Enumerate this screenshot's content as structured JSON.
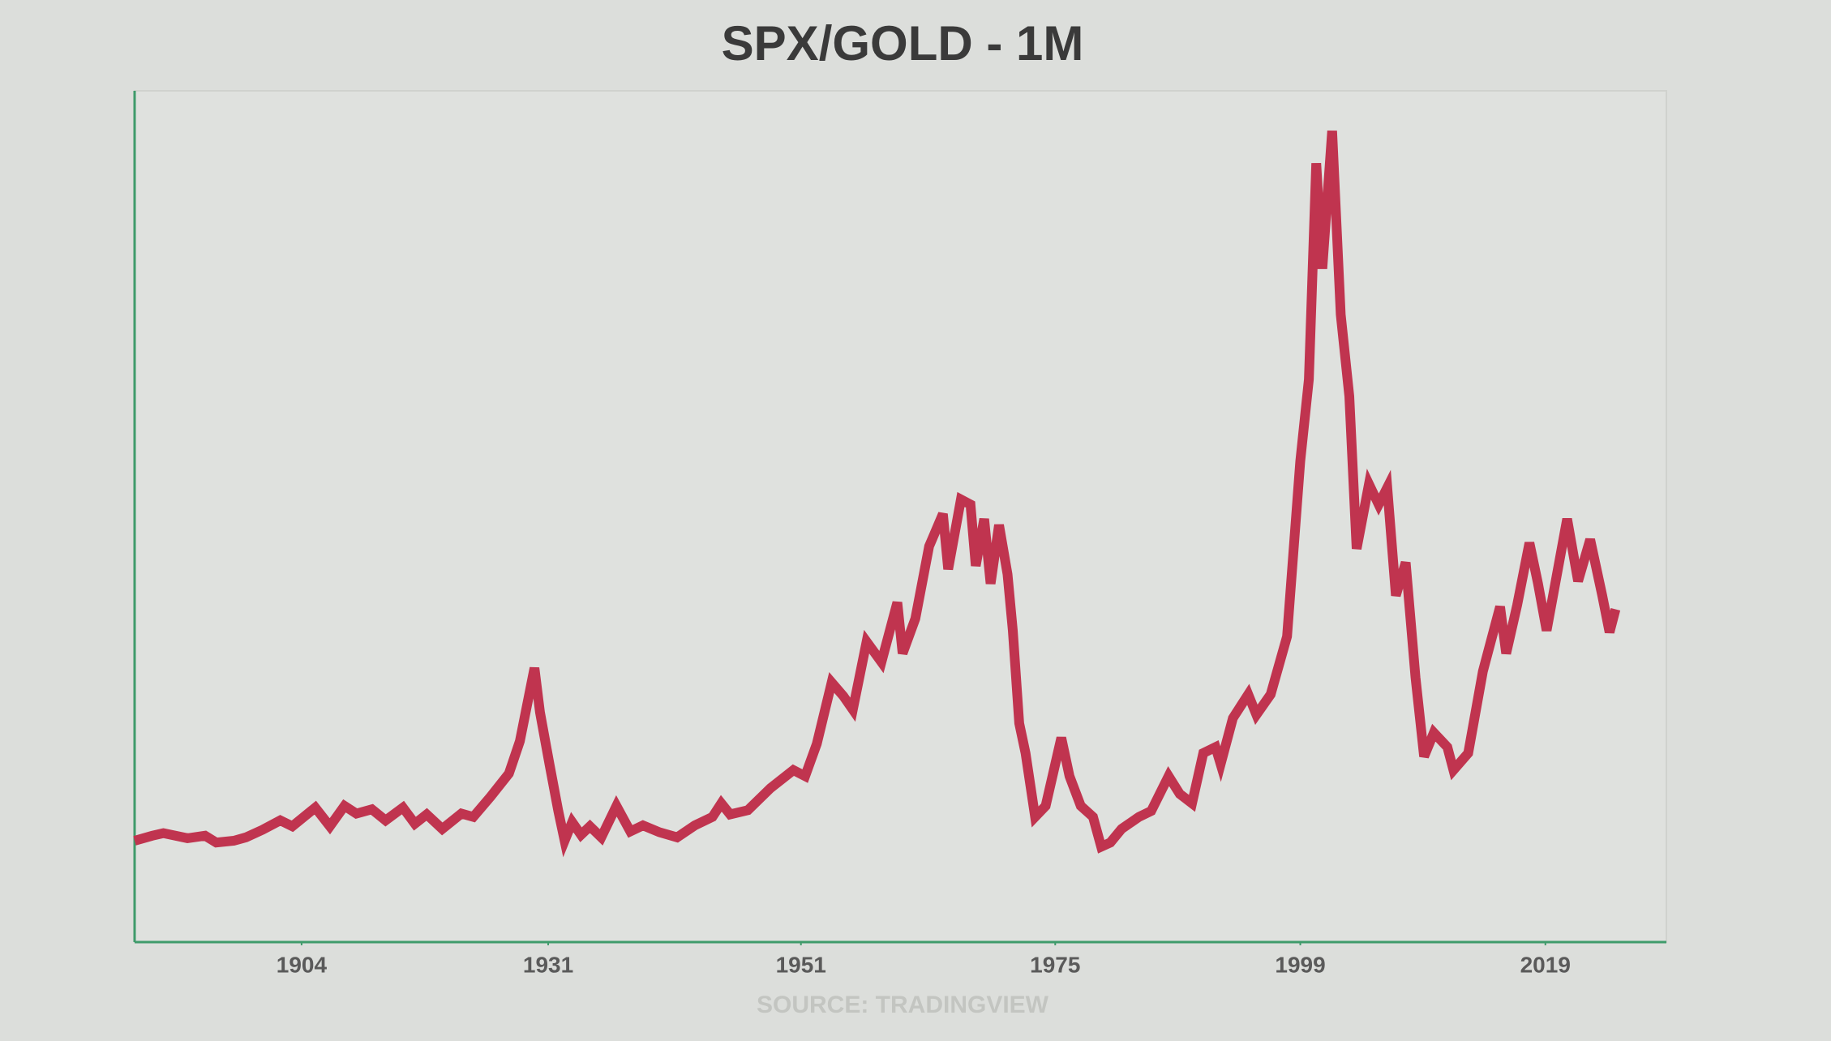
{
  "chart_data": {
    "type": "line",
    "title": "SPX/GOLD - 1M",
    "source": "SOURCE: TRADINGVIEW",
    "color": "#c0344f",
    "xlim": [
      1886,
      2029
    ],
    "xticks": [
      1904,
      1931,
      1951,
      1975,
      1999,
      2019
    ],
    "ylim": [
      0,
      100
    ],
    "x": [
      1886.0,
      1887.9,
      1889.1,
      1891.7,
      1893.6,
      1894.8,
      1896.7,
      1898.0,
      1899.8,
      1901.7,
      1903.0,
      1905.5,
      1907.1,
      1908.7,
      1910.0,
      1911.7,
      1913.2,
      1915.1,
      1916.4,
      1917.7,
      1919.4,
      1921.5,
      1922.8,
      1924.7,
      1926.7,
      1927.9,
      1929.5,
      1930.1,
      1931.1,
      1931.8,
      1932.3,
      1932.9,
      1933.6,
      1934.3,
      1935.2,
      1936.4,
      1937.5,
      1938.5,
      1939.8,
      1941.2,
      1942.6,
      1944.0,
      1944.7,
      1945.4,
      1946.8,
      1948.6,
      1950.4,
      1951.4,
      1952.5,
      1953.9,
      1955.0,
      1955.9,
      1957.2,
      1958.6,
      1960.1,
      1960.6,
      1961.8,
      1963.1,
      1964.4,
      1964.9,
      1966.1,
      1967.0,
      1967.5,
      1968.3,
      1968.9,
      1969.7,
      1970.5,
      1971.0,
      1971.6,
      1972.2,
      1973.1,
      1974.1,
      1975.6,
      1976.4,
      1977.5,
      1978.7,
      1979.5,
      1980.4,
      1981.5,
      1983.2,
      1984.4,
      1986.1,
      1987.2,
      1988.4,
      1989.5,
      1990.7,
      1991.2,
      1992.4,
      1993.9,
      1994.7,
      1996.1,
      1997.7,
      1999.0,
      1999.7,
      2000.3,
      2000.8,
      2001.6,
      2002.3,
      2003.0,
      2003.6,
      2004.6,
      2005.4,
      2006.1,
      2006.8,
      2007.6,
      2008.4,
      2009.1,
      2009.9,
      2011.0,
      2011.5,
      2012.7,
      2013.9,
      2015.3,
      2015.8,
      2016.7,
      2017.7,
      2018.4,
      2019.1,
      2020.8,
      2021.7,
      2022.7,
      2023.7,
      2024.3,
      2024.8
    ],
    "values": [
      11.9,
      12.5,
      12.8,
      12.2,
      12.5,
      11.7,
      11.9,
      12.3,
      13.2,
      14.3,
      13.6,
      15.8,
      13.6,
      16.0,
      15.1,
      15.6,
      14.3,
      15.8,
      13.9,
      15.0,
      13.3,
      15.1,
      14.7,
      17.1,
      19.8,
      23.6,
      32.2,
      27.0,
      20.9,
      15.4,
      11.9,
      14.1,
      12.6,
      13.6,
      12.3,
      16.0,
      13.0,
      13.7,
      12.9,
      12.3,
      13.7,
      14.7,
      16.3,
      15.0,
      15.5,
      18.1,
      20.2,
      19.5,
      23.3,
      30.5,
      28.9,
      27.3,
      35.3,
      32.9,
      39.9,
      33.9,
      38.0,
      46.5,
      50.3,
      43.8,
      52.0,
      51.4,
      44.2,
      49.7,
      42.1,
      49.0,
      43.2,
      36.6,
      25.7,
      22.2,
      14.7,
      16.0,
      24.0,
      19.5,
      16.0,
      14.7,
      11.2,
      11.7,
      13.3,
      14.7,
      15.4,
      19.5,
      17.4,
      16.3,
      22.2,
      22.9,
      20.9,
      26.3,
      29.1,
      26.7,
      29.1,
      35.9,
      56.5,
      66.1,
      91.5,
      79.1,
      95.3,
      73.7,
      64.1,
      46.2,
      53.8,
      51.4,
      53.4,
      40.7,
      44.6,
      31.1,
      21.8,
      24.6,
      22.9,
      20.2,
      22.2,
      31.8,
      39.4,
      33.9,
      39.6,
      46.9,
      42.1,
      36.6,
      49.7,
      42.4,
      47.3,
      40.7,
      36.4,
      39.1
    ]
  }
}
